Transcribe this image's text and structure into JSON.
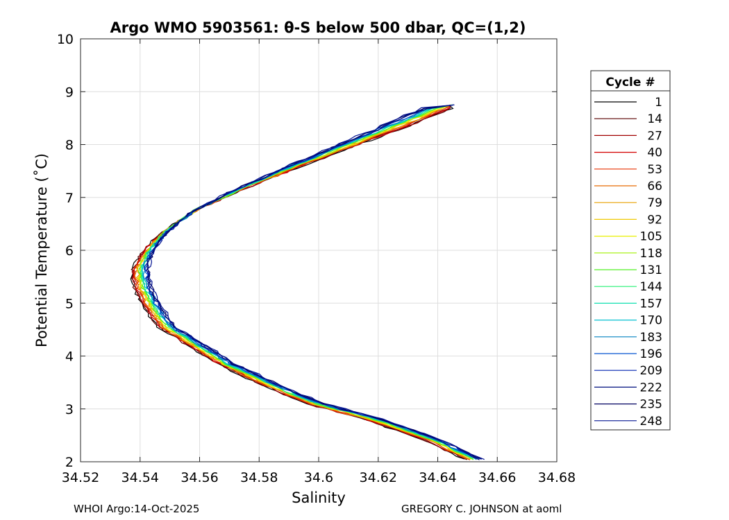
{
  "chart_data": {
    "type": "line",
    "title": "Argo WMO 5903561: θ-S below 500 dbar,  QC=(1,2)",
    "xlabel": "Salinity",
    "ylabel": "Potential Temperature (˚C)",
    "xlim": [
      34.52,
      34.68
    ],
    "ylim": [
      2,
      10
    ],
    "xticks": [
      "34.52",
      "34.54",
      "34.56",
      "34.58",
      "34.6",
      "34.62",
      "34.64",
      "34.66",
      "34.68"
    ],
    "yticks": [
      "2",
      "3",
      "4",
      "5",
      "6",
      "7",
      "8",
      "9",
      "10"
    ],
    "grid": true,
    "legend": {
      "title": "Cycle #",
      "placement": "outside-right",
      "entries": [
        {
          "label": "1",
          "color": "#000000"
        },
        {
          "label": "14",
          "color": "#5a0000"
        },
        {
          "label": "27",
          "color": "#a00000"
        },
        {
          "label": "40",
          "color": "#d40000"
        },
        {
          "label": "53",
          "color": "#e83000"
        },
        {
          "label": "66",
          "color": "#e86a00"
        },
        {
          "label": "79",
          "color": "#e8a000"
        },
        {
          "label": "92",
          "color": "#f0c800"
        },
        {
          "label": "105",
          "color": "#e8f000"
        },
        {
          "label": "118",
          "color": "#a0f000"
        },
        {
          "label": "131",
          "color": "#50f020"
        },
        {
          "label": "144",
          "color": "#20f070"
        },
        {
          "label": "157",
          "color": "#10e0b0"
        },
        {
          "label": "170",
          "color": "#00c0d0"
        },
        {
          "label": "183",
          "color": "#0080c0"
        },
        {
          "label": "196",
          "color": "#0050d0"
        },
        {
          "label": "209",
          "color": "#0020b0"
        },
        {
          "label": "222",
          "color": "#001080"
        },
        {
          "label": "235",
          "color": "#000060"
        },
        {
          "label": "248",
          "color": "#001090"
        }
      ]
    },
    "profile_shape": {
      "note_free": true,
      "points": [
        [
          34.653,
          2.05
        ],
        [
          34.64,
          2.4
        ],
        [
          34.62,
          2.8
        ],
        [
          34.6,
          3.1
        ],
        [
          34.585,
          3.45
        ],
        [
          34.57,
          3.85
        ],
        [
          34.56,
          4.2
        ],
        [
          34.55,
          4.55
        ],
        [
          34.545,
          4.95
        ],
        [
          34.542,
          5.3
        ],
        [
          34.541,
          5.65
        ],
        [
          34.544,
          6.0
        ],
        [
          34.55,
          6.35
        ],
        [
          34.56,
          6.75
        ],
        [
          34.575,
          7.15
        ],
        [
          34.592,
          7.55
        ],
        [
          34.61,
          7.95
        ],
        [
          34.628,
          8.35
        ],
        [
          34.645,
          8.75
        ]
      ]
    }
  },
  "footer": {
    "left": "WHOI Argo:14-Oct-2025",
    "right": "GREGORY C. JOHNSON at aoml"
  }
}
